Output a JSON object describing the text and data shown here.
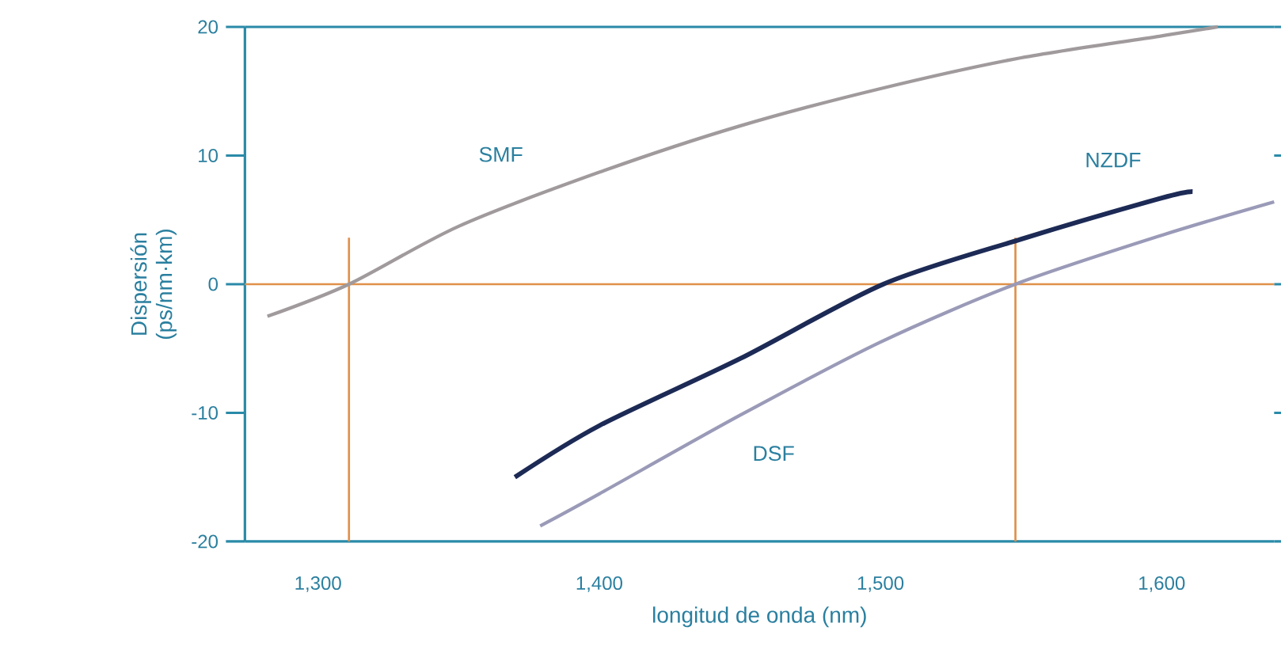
{
  "chart_data": {
    "type": "line",
    "xlabel": "longitud de onda (nm)",
    "ylabel": "Dispersión (ps/nm·km)",
    "xlim": [
      1274,
      1640
    ],
    "ylim": [
      -20,
      20
    ],
    "xticks": [
      {
        "value": 1300,
        "label": "1,300"
      },
      {
        "value": 1400,
        "label": "1,400"
      },
      {
        "value": 1500,
        "label": "1,500"
      },
      {
        "value": 1600,
        "label": "1,600"
      }
    ],
    "yticks": [
      -20,
      -10,
      0,
      10,
      20
    ],
    "grid": false,
    "legend": false,
    "marker": "none",
    "line_style": "solid",
    "ref_lines": [
      {
        "axis": "y",
        "value": 0,
        "color": "#e0904a"
      },
      {
        "axis": "x",
        "value": 1311,
        "color": "#e0904a"
      },
      {
        "axis": "x",
        "value": 1548,
        "color": "#e0904a"
      }
    ],
    "series": [
      {
        "name": "SMF",
        "color": "#a09a9c",
        "x": [
          1282,
          1311,
          1350,
          1400,
          1450,
          1500,
          1550,
          1600,
          1620
        ],
        "values": [
          -2.5,
          0,
          4.5,
          8.7,
          12.3,
          15.2,
          17.6,
          19.3,
          20
        ]
      },
      {
        "name": "NZDF",
        "color": "#1c2a55",
        "x": [
          1370,
          1400,
          1450,
          1501,
          1550,
          1600,
          1611
        ],
        "values": [
          -15,
          -11,
          -5.8,
          0,
          3.5,
          6.7,
          7.2
        ]
      },
      {
        "name": "DSF",
        "color": "#9a9ab8",
        "x": [
          1379,
          1400,
          1450,
          1500,
          1548,
          1600,
          1640
        ],
        "values": [
          -18.8,
          -16.3,
          -10.2,
          -4.5,
          0,
          3.8,
          6.4
        ]
      }
    ]
  }
}
